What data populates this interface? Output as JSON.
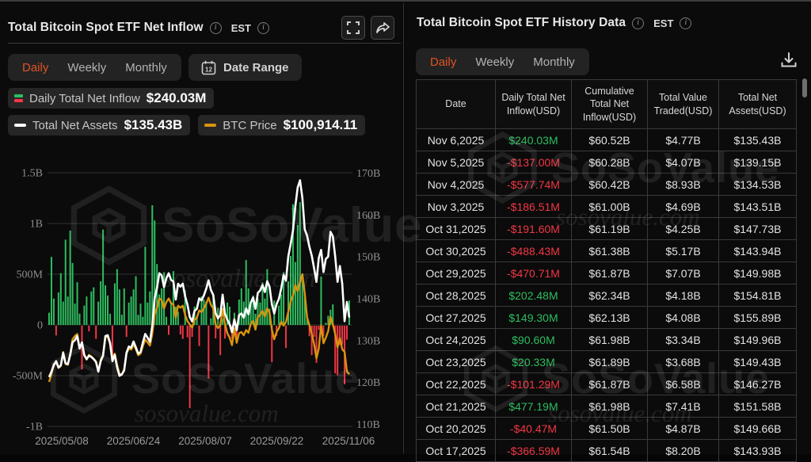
{
  "colors": {
    "accent_orange": "#E05325",
    "bar_positive": "#2EBD5F",
    "bar_negative": "#F23645",
    "assets_line": "#FFFFFF",
    "btc_line": "#D9940E",
    "grid": "#323232",
    "axis_text": "#8f8f8f"
  },
  "watermark": {
    "brand": "SoSoValue",
    "domain": "sosovalue.com"
  },
  "left_panel": {
    "title": "Total Bitcoin Spot ETF Net Inflow",
    "est_label": "EST",
    "tabs": [
      "Daily",
      "Weekly",
      "Monthly"
    ],
    "active_tab": "Daily",
    "date_range_label": "Date Range",
    "calendar_day": "12",
    "legend": {
      "inflow_label": "Daily Total Net Inflow",
      "inflow_value": "$240.03M",
      "assets_label": "Total Net Assets",
      "assets_value": "$135.43B",
      "btc_label": "BTC Price",
      "btc_value": "$100,914.11"
    }
  },
  "chart_data": {
    "type": "bar",
    "title": "Total Bitcoin Spot ETF Net Inflow (Daily)",
    "x_tick_labels": [
      "2025/05/08",
      "2025/06/24",
      "2025/08/07",
      "2025/09/22",
      "2025/11/06"
    ],
    "y_left_ticks": [
      "1.5B",
      "1B",
      "500M",
      "0",
      "-500M",
      "-1B"
    ],
    "y_left_range_musd": [
      -1000,
      1500
    ],
    "y_right_ticks": [
      "170B",
      "160B",
      "150B",
      "140B",
      "130B",
      "120B",
      "110B"
    ],
    "y_right_range_busd": [
      110,
      170
    ],
    "grid": true,
    "legend_position": "top",
    "series": [
      {
        "name": "Daily Total Net Inflow",
        "type": "bar",
        "unit": "USD M",
        "axis": "left",
        "values": [
          120,
          670,
          260,
          -96,
          320,
          510,
          230,
          840,
          280,
          930,
          610,
          210,
          420,
          110,
          -430,
          190,
          280,
          -56,
          330,
          370,
          -130,
          230,
          430,
          940,
          390,
          290,
          110,
          -350,
          410,
          550,
          350,
          100,
          360,
          -110,
          220,
          280,
          350,
          480,
          100,
          210,
          80,
          770,
          220,
          330,
          1180,
          1030,
          600,
          300,
          360,
          520,
          80,
          -90,
          230,
          530,
          180,
          130,
          -86,
          -130,
          340,
          -115,
          -812,
          -110,
          180,
          90,
          -200,
          280,
          250,
          230,
          -520,
          65,
          310,
          -125,
          170,
          -290,
          60,
          -127,
          220,
          180,
          -130,
          120,
          -160,
          250,
          360,
          230,
          640,
          360,
          230,
          290,
          110,
          260,
          220,
          420,
          260,
          550,
          160,
          -360,
          240,
          -100,
          190,
          300,
          520,
          -220,
          430,
          680,
          1190,
          620,
          985,
          1210,
          440,
          320,
          100,
          -104,
          -290,
          -110,
          -366.59,
          -40.47,
          477.19,
          -101.29,
          20.33,
          90.6,
          149.3,
          202.48,
          -470.71,
          -488.43,
          -191.6,
          -186.51,
          -577.74,
          -137,
          240.03
        ]
      },
      {
        "name": "Total Net Assets",
        "type": "line",
        "unit": "USD B",
        "axis": "right",
        "values": [
          121.2,
          122.5,
          124,
          125,
          123.5,
          124,
          127,
          124.5,
          124.3,
          126.5,
          129.5,
          130,
          131,
          128,
          129.5,
          126.5,
          125.5,
          126.3,
          126,
          125.5,
          124.8,
          122.5,
          125,
          126.3,
          131,
          131.2,
          129.3,
          125,
          126.5,
          123.5,
          121.5,
          121.8,
          122.8,
          127,
          128.5,
          128.2,
          129.7,
          128.3,
          126.8,
          127.2,
          129.5,
          131.5,
          130.6,
          129.6,
          133.5,
          140,
          142.5,
          146,
          145.5,
          142.7,
          144.8,
          146,
          144.4,
          144,
          139.7,
          143.5,
          142.8,
          143.5,
          140.5,
          138.5,
          135.5,
          134.5,
          137,
          137.5,
          140,
          139.5,
          140.7,
          142.3,
          144.3,
          142,
          140.8,
          136.5,
          135.2,
          136,
          140.9,
          136.3,
          134.9,
          133.8,
          131.9,
          135,
          132.4,
          136,
          136.4,
          135.4,
          137.6,
          136.2,
          139,
          140.2,
          137.5,
          141.3,
          141.9,
          143.2,
          141.5,
          144.1,
          142.8,
          138.6,
          136.4,
          138.6,
          139.9,
          142.4,
          145.6,
          144.2,
          150,
          153,
          156.2,
          162,
          166.5,
          168.2,
          164,
          156.5,
          155,
          152.3,
          150.2,
          147.2,
          143.93,
          149.66,
          151.58,
          146.27,
          149.43,
          149.96,
          155.89,
          154.81,
          149.98,
          143.94,
          147.73,
          143.51,
          134.53,
          139.15,
          135.43
        ]
      },
      {
        "name": "BTC Price",
        "type": "line",
        "unit": "USD K",
        "axis": "hidden",
        "values": [
          99,
          101,
          103.5,
          104,
          102.5,
          103,
          106.5,
          103.5,
          103.3,
          106,
          109.7,
          110.5,
          111,
          107.5,
          108.9,
          105.6,
          104.6,
          105.8,
          105.4,
          104.8,
          104.1,
          101.6,
          104.6,
          105.7,
          110.2,
          110.3,
          108.6,
          104.9,
          106.1,
          103.3,
          101,
          100.9,
          102.1,
          106.1,
          107.4,
          107.1,
          108.4,
          107.2,
          105.7,
          106.1,
          108,
          109.6,
          108.9,
          108.1,
          111,
          115.9,
          117.5,
          119.9,
          119.5,
          117.4,
          119,
          119.9,
          118.7,
          118.4,
          115.1,
          118.1,
          117.6,
          118.1,
          115.8,
          114.2,
          113.4,
          112.6,
          114.6,
          115,
          116.9,
          116.5,
          117.4,
          118.6,
          120.1,
          118.3,
          117.4,
          113.4,
          112.5,
          113.2,
          117.3,
          113.5,
          111.2,
          110.1,
          108.2,
          112.4,
          108.8,
          111.2,
          111.5,
          110.7,
          112,
          111.3,
          113.6,
          114.3,
          112.1,
          115.3,
          115.8,
          116.8,
          115.4,
          117.4,
          116.4,
          112.1,
          109.7,
          111.5,
          112.5,
          114.1,
          113.1,
          114,
          116.6,
          119.2,
          120.6,
          123.3,
          121.7,
          123.9,
          126,
          121.3,
          115.2,
          113.2,
          111.1,
          108.5,
          104.9,
          107.4,
          113.2,
          108.7,
          110.1,
          111.7,
          115.3,
          113.4,
          111,
          107.7,
          110,
          107.2,
          106.5,
          101.6,
          100.9
        ]
      }
    ]
  },
  "right_panel": {
    "title": "Total Bitcoin Spot ETF History Data",
    "est_label": "EST",
    "tabs": [
      "Daily",
      "Weekly",
      "Monthly"
    ],
    "active_tab": "Daily",
    "table": {
      "columns": [
        "Date",
        "Daily Total Net Inflow(USD)",
        "Cumulative Total Net Inflow(USD)",
        "Total Value Traded(USD)",
        "Total Net Assets(USD)"
      ],
      "rows": [
        {
          "date": "Nov 6,2025",
          "inflow": "$240.03M",
          "cumulative": "$60.52B",
          "traded": "$4.77B",
          "assets": "$135.43B"
        },
        {
          "date": "Nov 5,2025",
          "inflow": "-$137.00M",
          "cumulative": "$60.28B",
          "traded": "$4.07B",
          "assets": "$139.15B"
        },
        {
          "date": "Nov 4,2025",
          "inflow": "-$577.74M",
          "cumulative": "$60.42B",
          "traded": "$8.93B",
          "assets": "$134.53B"
        },
        {
          "date": "Nov 3,2025",
          "inflow": "-$186.51M",
          "cumulative": "$61.00B",
          "traded": "$4.69B",
          "assets": "$143.51B"
        },
        {
          "date": "Oct 31,2025",
          "inflow": "-$191.60M",
          "cumulative": "$61.19B",
          "traded": "$4.25B",
          "assets": "$147.73B"
        },
        {
          "date": "Oct 30,2025",
          "inflow": "-$488.43M",
          "cumulative": "$61.38B",
          "traded": "$5.17B",
          "assets": "$143.94B"
        },
        {
          "date": "Oct 29,2025",
          "inflow": "-$470.71M",
          "cumulative": "$61.87B",
          "traded": "$7.07B",
          "assets": "$149.98B"
        },
        {
          "date": "Oct 28,2025",
          "inflow": "$202.48M",
          "cumulative": "$62.34B",
          "traded": "$4.18B",
          "assets": "$154.81B"
        },
        {
          "date": "Oct 27,2025",
          "inflow": "$149.30M",
          "cumulative": "$62.13B",
          "traded": "$4.08B",
          "assets": "$155.89B"
        },
        {
          "date": "Oct 24,2025",
          "inflow": "$90.60M",
          "cumulative": "$61.98B",
          "traded": "$3.34B",
          "assets": "$149.96B"
        },
        {
          "date": "Oct 23,2025",
          "inflow": "$20.33M",
          "cumulative": "$61.89B",
          "traded": "$3.68B",
          "assets": "$149.43B"
        },
        {
          "date": "Oct 22,2025",
          "inflow": "-$101.29M",
          "cumulative": "$61.87B",
          "traded": "$6.58B",
          "assets": "$146.27B"
        },
        {
          "date": "Oct 21,2025",
          "inflow": "$477.19M",
          "cumulative": "$61.98B",
          "traded": "$7.41B",
          "assets": "$151.58B"
        },
        {
          "date": "Oct 20,2025",
          "inflow": "-$40.47M",
          "cumulative": "$61.50B",
          "traded": "$4.87B",
          "assets": "$149.66B"
        },
        {
          "date": "Oct 17,2025",
          "inflow": "-$366.59M",
          "cumulative": "$61.54B",
          "traded": "$8.20B",
          "assets": "$143.93B"
        }
      ]
    }
  }
}
